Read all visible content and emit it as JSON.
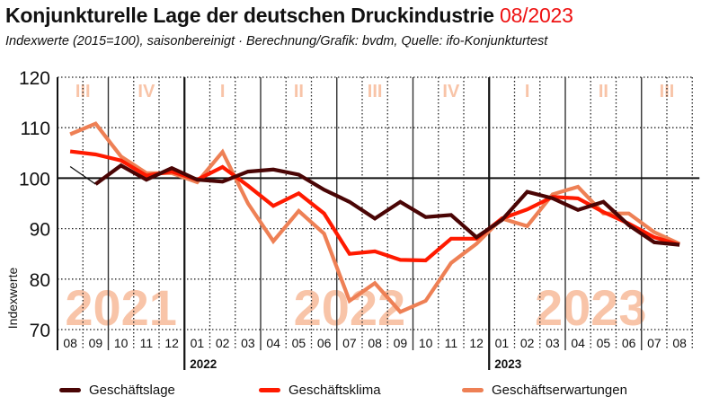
{
  "header": {
    "title": "Konjunkturelle Lage der deutschen Druckindustrie",
    "title_date": "08/2023",
    "subtitle": "Indexwerte (2015=100), saisonbereinigt · Berechnung/Grafik: bvdm, Quelle: ifo-Konjunkturtest"
  },
  "colors": {
    "geschaeftslage": "#4a0505",
    "geschaeftsklima": "#ff1a00",
    "geschaeftserwartungen": "#ee8055",
    "watermark": "#f8c4a8",
    "accent": "#ee1111"
  },
  "chart_data": {
    "type": "line",
    "title": "Konjunkturelle Lage der deutschen Druckindustrie 08/2023",
    "xlabel": "",
    "ylabel": "Indexwerte",
    "ylim": [
      70,
      120
    ],
    "yticks": [
      70,
      80,
      90,
      100,
      110,
      120
    ],
    "reference_line": 100,
    "grid": true,
    "legend_position": "bottom",
    "x": [
      "08",
      "09",
      "10",
      "11",
      "12",
      "01",
      "02",
      "03",
      "04",
      "05",
      "06",
      "07",
      "08",
      "09",
      "10",
      "11",
      "12",
      "01",
      "02",
      "03",
      "04",
      "05",
      "06",
      "07",
      "08"
    ],
    "year_labels": [
      {
        "label": "2022",
        "start_index": 5
      },
      {
        "label": "2023",
        "start_index": 17
      }
    ],
    "year_watermarks": [
      {
        "label": "2021",
        "center_index": 2
      },
      {
        "label": "2022",
        "center_index": 11
      },
      {
        "label": "2023",
        "center_index": 20.5
      }
    ],
    "quarters": [
      {
        "label": "III",
        "start_index": 0,
        "end_index": 2
      },
      {
        "label": "IV",
        "start_index": 2,
        "end_index": 5
      },
      {
        "label": "I",
        "start_index": 5,
        "end_index": 8
      },
      {
        "label": "II",
        "start_index": 8,
        "end_index": 11
      },
      {
        "label": "III",
        "start_index": 11,
        "end_index": 14
      },
      {
        "label": "IV",
        "start_index": 14,
        "end_index": 17
      },
      {
        "label": "I",
        "start_index": 17,
        "end_index": 20
      },
      {
        "label": "II",
        "start_index": 20,
        "end_index": 23
      },
      {
        "label": "III",
        "start_index": 23,
        "end_index": 25
      }
    ],
    "series": [
      {
        "key": "geschaeftserwartungen",
        "name": "Geschäftserwartungen",
        "values": [
          108.7,
          110.8,
          104.3,
          101.0,
          101.0,
          99.2,
          105.2,
          95.0,
          87.5,
          93.5,
          89.0,
          75.7,
          79.2,
          73.5,
          75.7,
          83.2,
          87.0,
          92.0,
          90.5,
          96.8,
          98.3,
          93.0,
          93.0,
          89.3,
          87.0
        ]
      },
      {
        "key": "geschaeftsklima",
        "name": "Geschäftsklima",
        "values": [
          105.3,
          104.7,
          103.5,
          100.5,
          101.3,
          99.7,
          102.2,
          98.5,
          94.5,
          97.0,
          93.0,
          85.0,
          85.5,
          83.8,
          83.7,
          88.0,
          88.0,
          92.0,
          93.8,
          96.3,
          96.0,
          93.3,
          91.0,
          88.3,
          86.8
        ]
      },
      {
        "key": "geschaeftslage",
        "name": "Geschäftslage",
        "values": [
          102.3,
          98.8,
          102.5,
          99.7,
          102.0,
          99.7,
          99.3,
          101.3,
          101.7,
          100.7,
          97.7,
          95.3,
          92.0,
          95.3,
          92.3,
          92.7,
          88.3,
          91.7,
          97.3,
          96.0,
          93.7,
          95.3,
          90.7,
          87.3,
          86.8
        ]
      }
    ]
  },
  "legend": [
    {
      "key": "geschaeftslage",
      "label": "Geschäftslage"
    },
    {
      "key": "geschaeftsklima",
      "label": "Geschäftsklima"
    },
    {
      "key": "geschaeftserwartungen",
      "label": "Geschäftserwartungen"
    }
  ]
}
